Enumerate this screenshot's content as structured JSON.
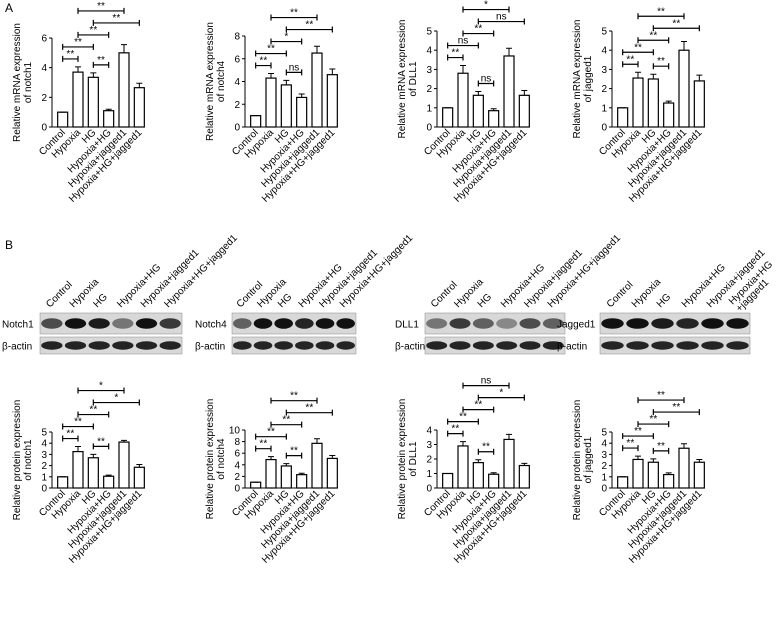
{
  "panels": [
    "A",
    "B"
  ],
  "blots": [
    {
      "lanes": [
        "Control",
        "Hypoxia",
        "HG",
        "Hypoxia+HG",
        "Hypoxia+jagged1",
        "Hypoxia+HG+jagged1"
      ],
      "rows": [
        "Notch1",
        "β-actin"
      ]
    },
    {
      "lanes": [
        "Control",
        "Hypoxia",
        "HG",
        "Hypoxia+HG",
        "Hypoxia+jagged1",
        "Hypoxia+HG+jagged1"
      ],
      "rows": [
        "Notch4",
        "β-actin"
      ]
    },
    {
      "lanes": [
        "Control",
        "Hypoxia",
        "HG",
        "Hypoxia+HG",
        "Hypoxia+jagged1",
        "Hypoxia+HG+jagged1"
      ],
      "rows": [
        "DLL1",
        "β-actin"
      ]
    },
    {
      "lanes": [
        "Control",
        "Hypoxia",
        "HG",
        "Hypoxia+HG",
        "Hypoxia+jagged1",
        [
          "Hypoxia+HG",
          "+jagged1"
        ]
      ],
      "rows": [
        "Jagged1",
        "β-actin"
      ]
    }
  ],
  "chart_data": [
    {
      "type": "bar",
      "ylabel": [
        "Relative mRNA expression",
        "of notch1"
      ],
      "categories": [
        "Control",
        "Hypoxia",
        "HG",
        "Hypoxia+HG",
        "Hypoxia+jagged1",
        "Hypoxia+HG+jagged1"
      ],
      "values": [
        1,
        3.7,
        3.35,
        1.1,
        5.0,
        2.65
      ],
      "errors": [
        0,
        0.35,
        0.3,
        0.1,
        0.55,
        0.3
      ],
      "ylim": [
        0,
        6
      ],
      "yticks": [
        0,
        2,
        4,
        6
      ],
      "annotations": [
        {
          "label": "**",
          "between": [
            "Control",
            "Hypoxia"
          ]
        },
        {
          "label": "**",
          "between": [
            "HG",
            "Hypoxia+HG"
          ]
        },
        {
          "label": "**",
          "between": [
            "Control",
            "HG"
          ]
        },
        {
          "label": "**",
          "between": [
            "Hypoxia",
            "Hypoxia+HG"
          ]
        },
        {
          "label": "**",
          "between": [
            "HG",
            "Hypoxia+HG+jagged1"
          ]
        },
        {
          "label": "**",
          "between": [
            "Hypoxia",
            "Hypoxia+jagged1"
          ]
        }
      ]
    },
    {
      "type": "bar",
      "ylabel": [
        "Relative mRNA expression",
        "of notch4"
      ],
      "categories": [
        "Control",
        "Hypoxia",
        "HG",
        "Hypoxia+HG",
        "Hypoxia+jagged1",
        "Hypoxia+HG+jagged1"
      ],
      "values": [
        1,
        4.3,
        3.7,
        2.6,
        6.5,
        4.6
      ],
      "errors": [
        0,
        0.4,
        0.4,
        0.3,
        0.6,
        0.5
      ],
      "ylim": [
        0,
        8
      ],
      "yticks": [
        0,
        2,
        4,
        6,
        8
      ],
      "annotations": [
        {
          "label": "**",
          "between": [
            "Control",
            "Hypoxia"
          ]
        },
        {
          "label": "ns",
          "between": [
            "HG",
            "Hypoxia+HG"
          ]
        },
        {
          "label": "**",
          "between": [
            "Control",
            "HG"
          ]
        },
        {
          "label": "*",
          "between": [
            "Hypoxia",
            "Hypoxia+HG"
          ]
        },
        {
          "label": "**",
          "between": [
            "HG",
            "Hypoxia+HG+jagged1"
          ]
        },
        {
          "label": "**",
          "between": [
            "Hypoxia",
            "Hypoxia+jagged1"
          ]
        }
      ]
    },
    {
      "type": "bar",
      "ylabel": [
        "Relative mRNA expression",
        "of DLL1"
      ],
      "categories": [
        "Control",
        "Hypoxia",
        "HG",
        "Hypoxia+HG",
        "Hypoxia+jagged1",
        "Hypoxia+HG+jagged1"
      ],
      "values": [
        1,
        2.8,
        1.65,
        0.85,
        3.7,
        1.65
      ],
      "errors": [
        0,
        0.4,
        0.2,
        0.1,
        0.4,
        0.25
      ],
      "ylim": [
        0,
        5
      ],
      "yticks": [
        0,
        1,
        2,
        3,
        4,
        5
      ],
      "annotations": [
        {
          "label": "**",
          "between": [
            "Control",
            "Hypoxia"
          ]
        },
        {
          "label": "ns",
          "between": [
            "HG",
            "Hypoxia+HG"
          ]
        },
        {
          "label": "ns",
          "between": [
            "Control",
            "HG"
          ]
        },
        {
          "label": "**",
          "between": [
            "Hypoxia",
            "Hypoxia+HG"
          ]
        },
        {
          "label": "ns",
          "between": [
            "HG",
            "Hypoxia+HG+jagged1"
          ]
        },
        {
          "label": "*",
          "between": [
            "Hypoxia",
            "Hypoxia+jagged1"
          ]
        }
      ]
    },
    {
      "type": "bar",
      "ylabel": [
        "Relative mRNA expression",
        "of jagged1"
      ],
      "categories": [
        "Control",
        "Hypoxia",
        "HG",
        "Hypoxia+HG",
        "Hypoxia+jagged1",
        "Hypoxia+HG+jagged1"
      ],
      "values": [
        1,
        2.55,
        2.5,
        1.25,
        4.0,
        2.4
      ],
      "errors": [
        0,
        0.3,
        0.25,
        0.1,
        0.45,
        0.3
      ],
      "ylim": [
        0,
        5
      ],
      "yticks": [
        0,
        1,
        2,
        3,
        4,
        5
      ],
      "annotations": [
        {
          "label": "**",
          "between": [
            "Control",
            "Hypoxia"
          ]
        },
        {
          "label": "**",
          "between": [
            "HG",
            "Hypoxia+HG"
          ]
        },
        {
          "label": "**",
          "between": [
            "Control",
            "HG"
          ]
        },
        {
          "label": "**",
          "between": [
            "Hypoxia",
            "Hypoxia+HG"
          ]
        },
        {
          "label": "**",
          "between": [
            "HG",
            "Hypoxia+HG+jagged1"
          ]
        },
        {
          "label": "**",
          "between": [
            "Hypoxia",
            "Hypoxia+jagged1"
          ]
        }
      ]
    },
    {
      "type": "bar",
      "ylabel": [
        "Relative protein expression",
        "of notch1"
      ],
      "categories": [
        "Control",
        "Hypoxia",
        "HG",
        "Hypoxia+HG",
        "Hypoxia+jagged1",
        "Hypoxia+HG+jagged1"
      ],
      "values": [
        1,
        3.25,
        2.7,
        1.05,
        4.1,
        1.85
      ],
      "errors": [
        0,
        0.45,
        0.3,
        0.1,
        0.15,
        0.25
      ],
      "ylim": [
        0,
        5
      ],
      "yticks": [
        0,
        1,
        2,
        3,
        4,
        5
      ],
      "annotations": [
        {
          "label": "**",
          "between": [
            "Control",
            "Hypoxia"
          ]
        },
        {
          "label": "**",
          "between": [
            "HG",
            "Hypoxia+HG"
          ]
        },
        {
          "label": "**",
          "between": [
            "Control",
            "HG"
          ]
        },
        {
          "label": "**",
          "between": [
            "Hypoxia",
            "Hypoxia+HG"
          ]
        },
        {
          "label": "*",
          "between": [
            "HG",
            "Hypoxia+HG+jagged1"
          ]
        },
        {
          "label": "*",
          "between": [
            "Hypoxia",
            "Hypoxia+jagged1"
          ]
        }
      ]
    },
    {
      "type": "bar",
      "ylabel": [
        "Relative protein expression",
        "of notch4"
      ],
      "categories": [
        "Control",
        "Hypoxia",
        "HG",
        "Hypoxia+HG",
        "Hypoxia+jagged1",
        "Hypoxia+HG+jagged1"
      ],
      "values": [
        1,
        4.9,
        3.8,
        2.3,
        7.7,
        5.1
      ],
      "errors": [
        0,
        0.5,
        0.4,
        0.25,
        0.8,
        0.5
      ],
      "ylim": [
        0,
        10
      ],
      "yticks": [
        0,
        2,
        4,
        6,
        8,
        10
      ],
      "annotations": [
        {
          "label": "**",
          "between": [
            "Control",
            "Hypoxia"
          ]
        },
        {
          "label": "**",
          "between": [
            "HG",
            "Hypoxia+HG"
          ]
        },
        {
          "label": "**",
          "between": [
            "Control",
            "HG"
          ]
        },
        {
          "label": "**",
          "between": [
            "Hypoxia",
            "Hypoxia+HG"
          ]
        },
        {
          "label": "**",
          "between": [
            "HG",
            "Hypoxia+HG+jagged1"
          ]
        },
        {
          "label": "**",
          "between": [
            "Hypoxia",
            "Hypoxia+jagged1"
          ]
        }
      ]
    },
    {
      "type": "bar",
      "ylabel": [
        "Relative protein expression",
        "of DLL1"
      ],
      "categories": [
        "Control",
        "Hypoxia",
        "HG",
        "Hypoxia+HG",
        "Hypoxia+jagged1",
        "Hypoxia+HG+jagged1"
      ],
      "values": [
        1,
        2.9,
        1.75,
        0.95,
        3.35,
        1.55
      ],
      "errors": [
        0,
        0.3,
        0.2,
        0.1,
        0.35,
        0.15
      ],
      "ylim": [
        0,
        4
      ],
      "yticks": [
        0,
        1,
        2,
        3,
        4
      ],
      "annotations": [
        {
          "label": "**",
          "between": [
            "Control",
            "Hypoxia"
          ]
        },
        {
          "label": "**",
          "between": [
            "HG",
            "Hypoxia+HG"
          ]
        },
        {
          "label": "**",
          "between": [
            "Control",
            "HG"
          ]
        },
        {
          "label": "**",
          "between": [
            "Hypoxia",
            "Hypoxia+HG"
          ]
        },
        {
          "label": "*",
          "between": [
            "HG",
            "Hypoxia+HG+jagged1"
          ]
        },
        {
          "label": "ns",
          "between": [
            "Hypoxia",
            "Hypoxia+jagged1"
          ]
        }
      ]
    },
    {
      "type": "bar",
      "ylabel": [
        "Relative protein expression",
        "of jagged1"
      ],
      "categories": [
        "Control",
        "Hypoxia",
        "HG",
        "Hypoxia+HG",
        "Hypoxia+jagged1",
        "Hypoxia+HG+jagged1"
      ],
      "values": [
        1,
        2.55,
        2.3,
        1.2,
        3.55,
        2.3
      ],
      "errors": [
        0,
        0.3,
        0.3,
        0.15,
        0.4,
        0.25
      ],
      "ylim": [
        0,
        5
      ],
      "yticks": [
        0,
        1,
        2,
        3,
        4,
        5
      ],
      "annotations": [
        {
          "label": "**",
          "between": [
            "Control",
            "Hypoxia"
          ]
        },
        {
          "label": "**",
          "between": [
            "HG",
            "Hypoxia+HG"
          ]
        },
        {
          "label": "**",
          "between": [
            "Control",
            "HG"
          ]
        },
        {
          "label": "**",
          "between": [
            "Hypoxia",
            "Hypoxia+HG"
          ]
        },
        {
          "label": "**",
          "between": [
            "HG",
            "Hypoxia+HG+jagged1"
          ]
        },
        {
          "label": "**",
          "between": [
            "Hypoxia",
            "Hypoxia+jagged1"
          ]
        }
      ]
    }
  ]
}
